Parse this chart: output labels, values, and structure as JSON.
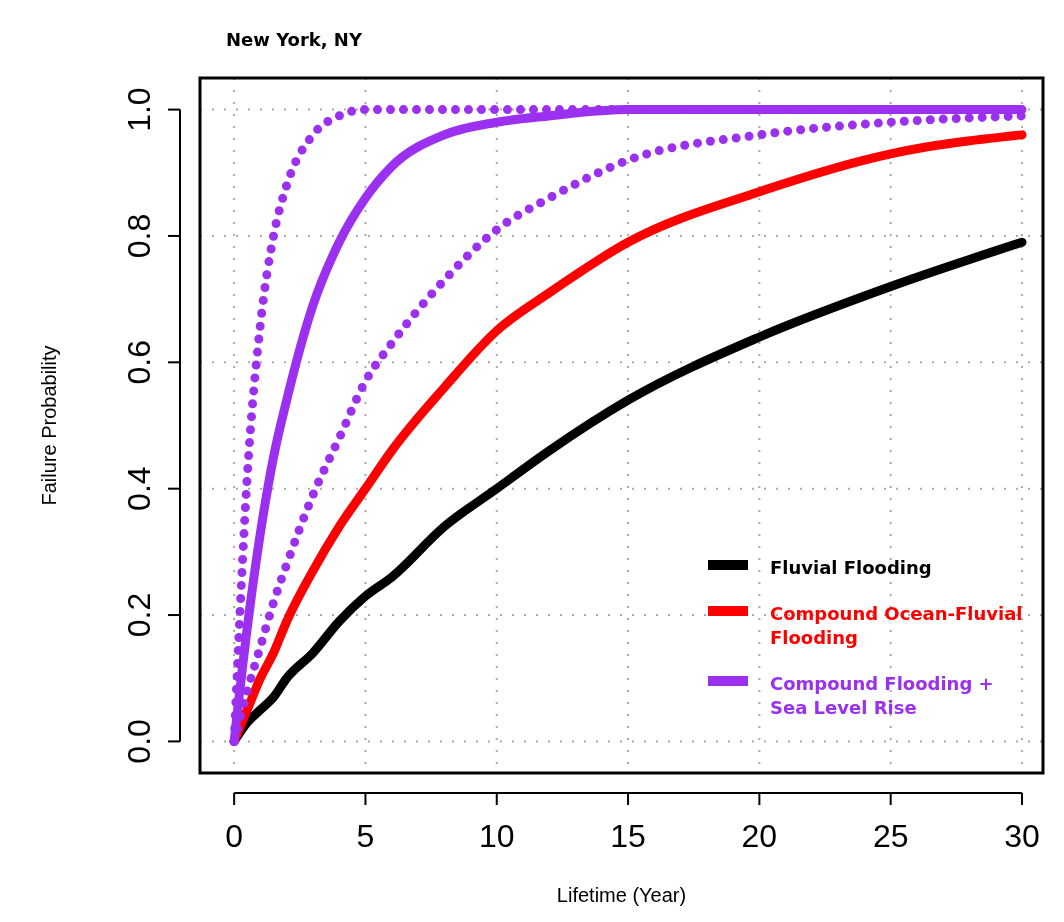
{
  "chart_data": {
    "type": "line",
    "title": "New York, NY",
    "xlabel": "Lifetime (Year)",
    "ylabel": "Failure Probability",
    "x": [
      0,
      0.5,
      1,
      1.5,
      2,
      3,
      4,
      5,
      6,
      8,
      10,
      12,
      15,
      20,
      25,
      30
    ],
    "xlim": [
      -1.3,
      30.8
    ],
    "ylim": [
      -0.05,
      1.05
    ],
    "xticks": [
      0,
      5,
      10,
      15,
      20,
      25,
      30
    ],
    "yticks": [
      {
        "value": 0,
        "label": "0.0"
      },
      {
        "value": 0.2,
        "label": "0.2"
      },
      {
        "value": 0.4,
        "label": "0.4"
      },
      {
        "value": 0.6,
        "label": "0.6"
      },
      {
        "value": 0.8,
        "label": "0.8"
      },
      {
        "value": 1,
        "label": "1.0"
      }
    ],
    "grid": true,
    "legend": "bottom right",
    "marker": "none",
    "series": [
      {
        "name": "Fluvial Flooding",
        "color": "#000000",
        "line_style": "solid",
        "values": [
          0,
          0.03,
          0.05,
          0.07,
          0.1,
          0.14,
          0.19,
          0.23,
          0.26,
          0.34,
          0.4,
          0.46,
          0.54,
          0.64,
          0.72,
          0.79
        ]
      },
      {
        "name": "Compound Ocean-Fluvial Flooding",
        "color": "#ff0000",
        "line_style": "solid",
        "values": [
          0,
          0.05,
          0.1,
          0.14,
          0.19,
          0.27,
          0.34,
          0.4,
          0.46,
          0.56,
          0.65,
          0.71,
          0.79,
          0.87,
          0.93,
          0.96
        ]
      },
      {
        "name": "Compound Flooding + Sea Level Rise",
        "color": "#9b30f0",
        "line_style": "solid",
        "values": [
          0,
          0.18,
          0.33,
          0.45,
          0.54,
          0.69,
          0.79,
          0.86,
          0.91,
          0.96,
          0.98,
          0.99,
          1,
          1,
          1,
          1
        ]
      },
      {
        "color": "#9b30f0",
        "line_style": "dotted",
        "values": [
          0,
          0.42,
          0.66,
          0.8,
          0.88,
          0.96,
          0.99,
          1,
          1,
          1,
          1,
          1,
          1,
          1,
          1,
          1
        ]
      },
      {
        "color": "#9b30f0",
        "line_style": "dotted",
        "values": [
          0,
          0.08,
          0.15,
          0.22,
          0.28,
          0.39,
          0.48,
          0.57,
          0.63,
          0.73,
          0.81,
          0.86,
          0.92,
          0.96,
          0.98,
          0.99
        ]
      }
    ]
  }
}
